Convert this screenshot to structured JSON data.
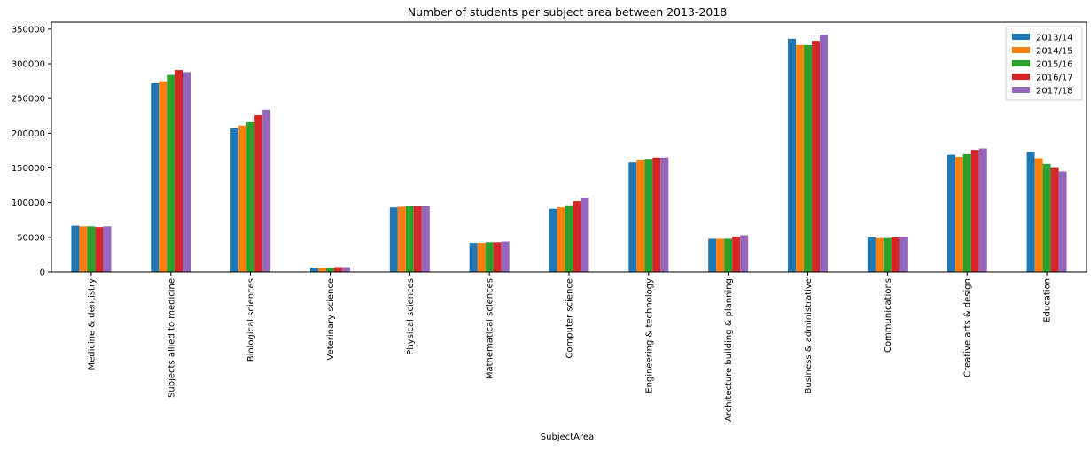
{
  "chart_data": {
    "type": "bar",
    "title": "Number of students per subject area between 2013-2018",
    "xlabel": "SubjectArea",
    "ylabel": "",
    "ylim": [
      0,
      360000
    ],
    "yticks": [
      "0",
      "50000",
      "100000",
      "150000",
      "200000",
      "250000",
      "300000",
      "350000"
    ],
    "ytick_values": [
      0,
      50000,
      100000,
      150000,
      200000,
      250000,
      300000,
      350000
    ],
    "grid": false,
    "legend_position": "top-right",
    "categories": [
      "Medicine & dentistry",
      "Subjects allied to medicine",
      "Biological sciences",
      "Veterinary science",
      "Physical sciences",
      "Mathematical sciences",
      "Computer science",
      "Engineering & technology",
      "Architecture building & planning",
      "Business & administrative",
      "Communications",
      "Creative arts & design",
      "Education"
    ],
    "series": [
      {
        "name": "2013/14",
        "color": "#1f77b4",
        "values": [
          67000,
          272000,
          207000,
          6000,
          93000,
          42000,
          91000,
          158000,
          48000,
          336000,
          50000,
          169000,
          173000
        ]
      },
      {
        "name": "2014/15",
        "color": "#ff7f0e",
        "values": [
          66000,
          275000,
          211000,
          6000,
          94000,
          42000,
          93000,
          161000,
          48000,
          327000,
          49000,
          166000,
          164000
        ]
      },
      {
        "name": "2015/16",
        "color": "#2ca02c",
        "values": [
          66000,
          284000,
          216000,
          6000,
          95000,
          43000,
          96000,
          162000,
          48000,
          327000,
          49000,
          170000,
          156000
        ]
      },
      {
        "name": "2016/17",
        "color": "#d62728",
        "values": [
          65000,
          291000,
          226000,
          7000,
          95000,
          43000,
          102000,
          165000,
          51000,
          333000,
          50000,
          176000,
          150000
        ]
      },
      {
        "name": "2017/18",
        "color": "#9467bd",
        "values": [
          66000,
          288000,
          234000,
          7000,
          95000,
          44000,
          107000,
          165000,
          53000,
          342000,
          51000,
          178000,
          145000
        ]
      }
    ]
  }
}
